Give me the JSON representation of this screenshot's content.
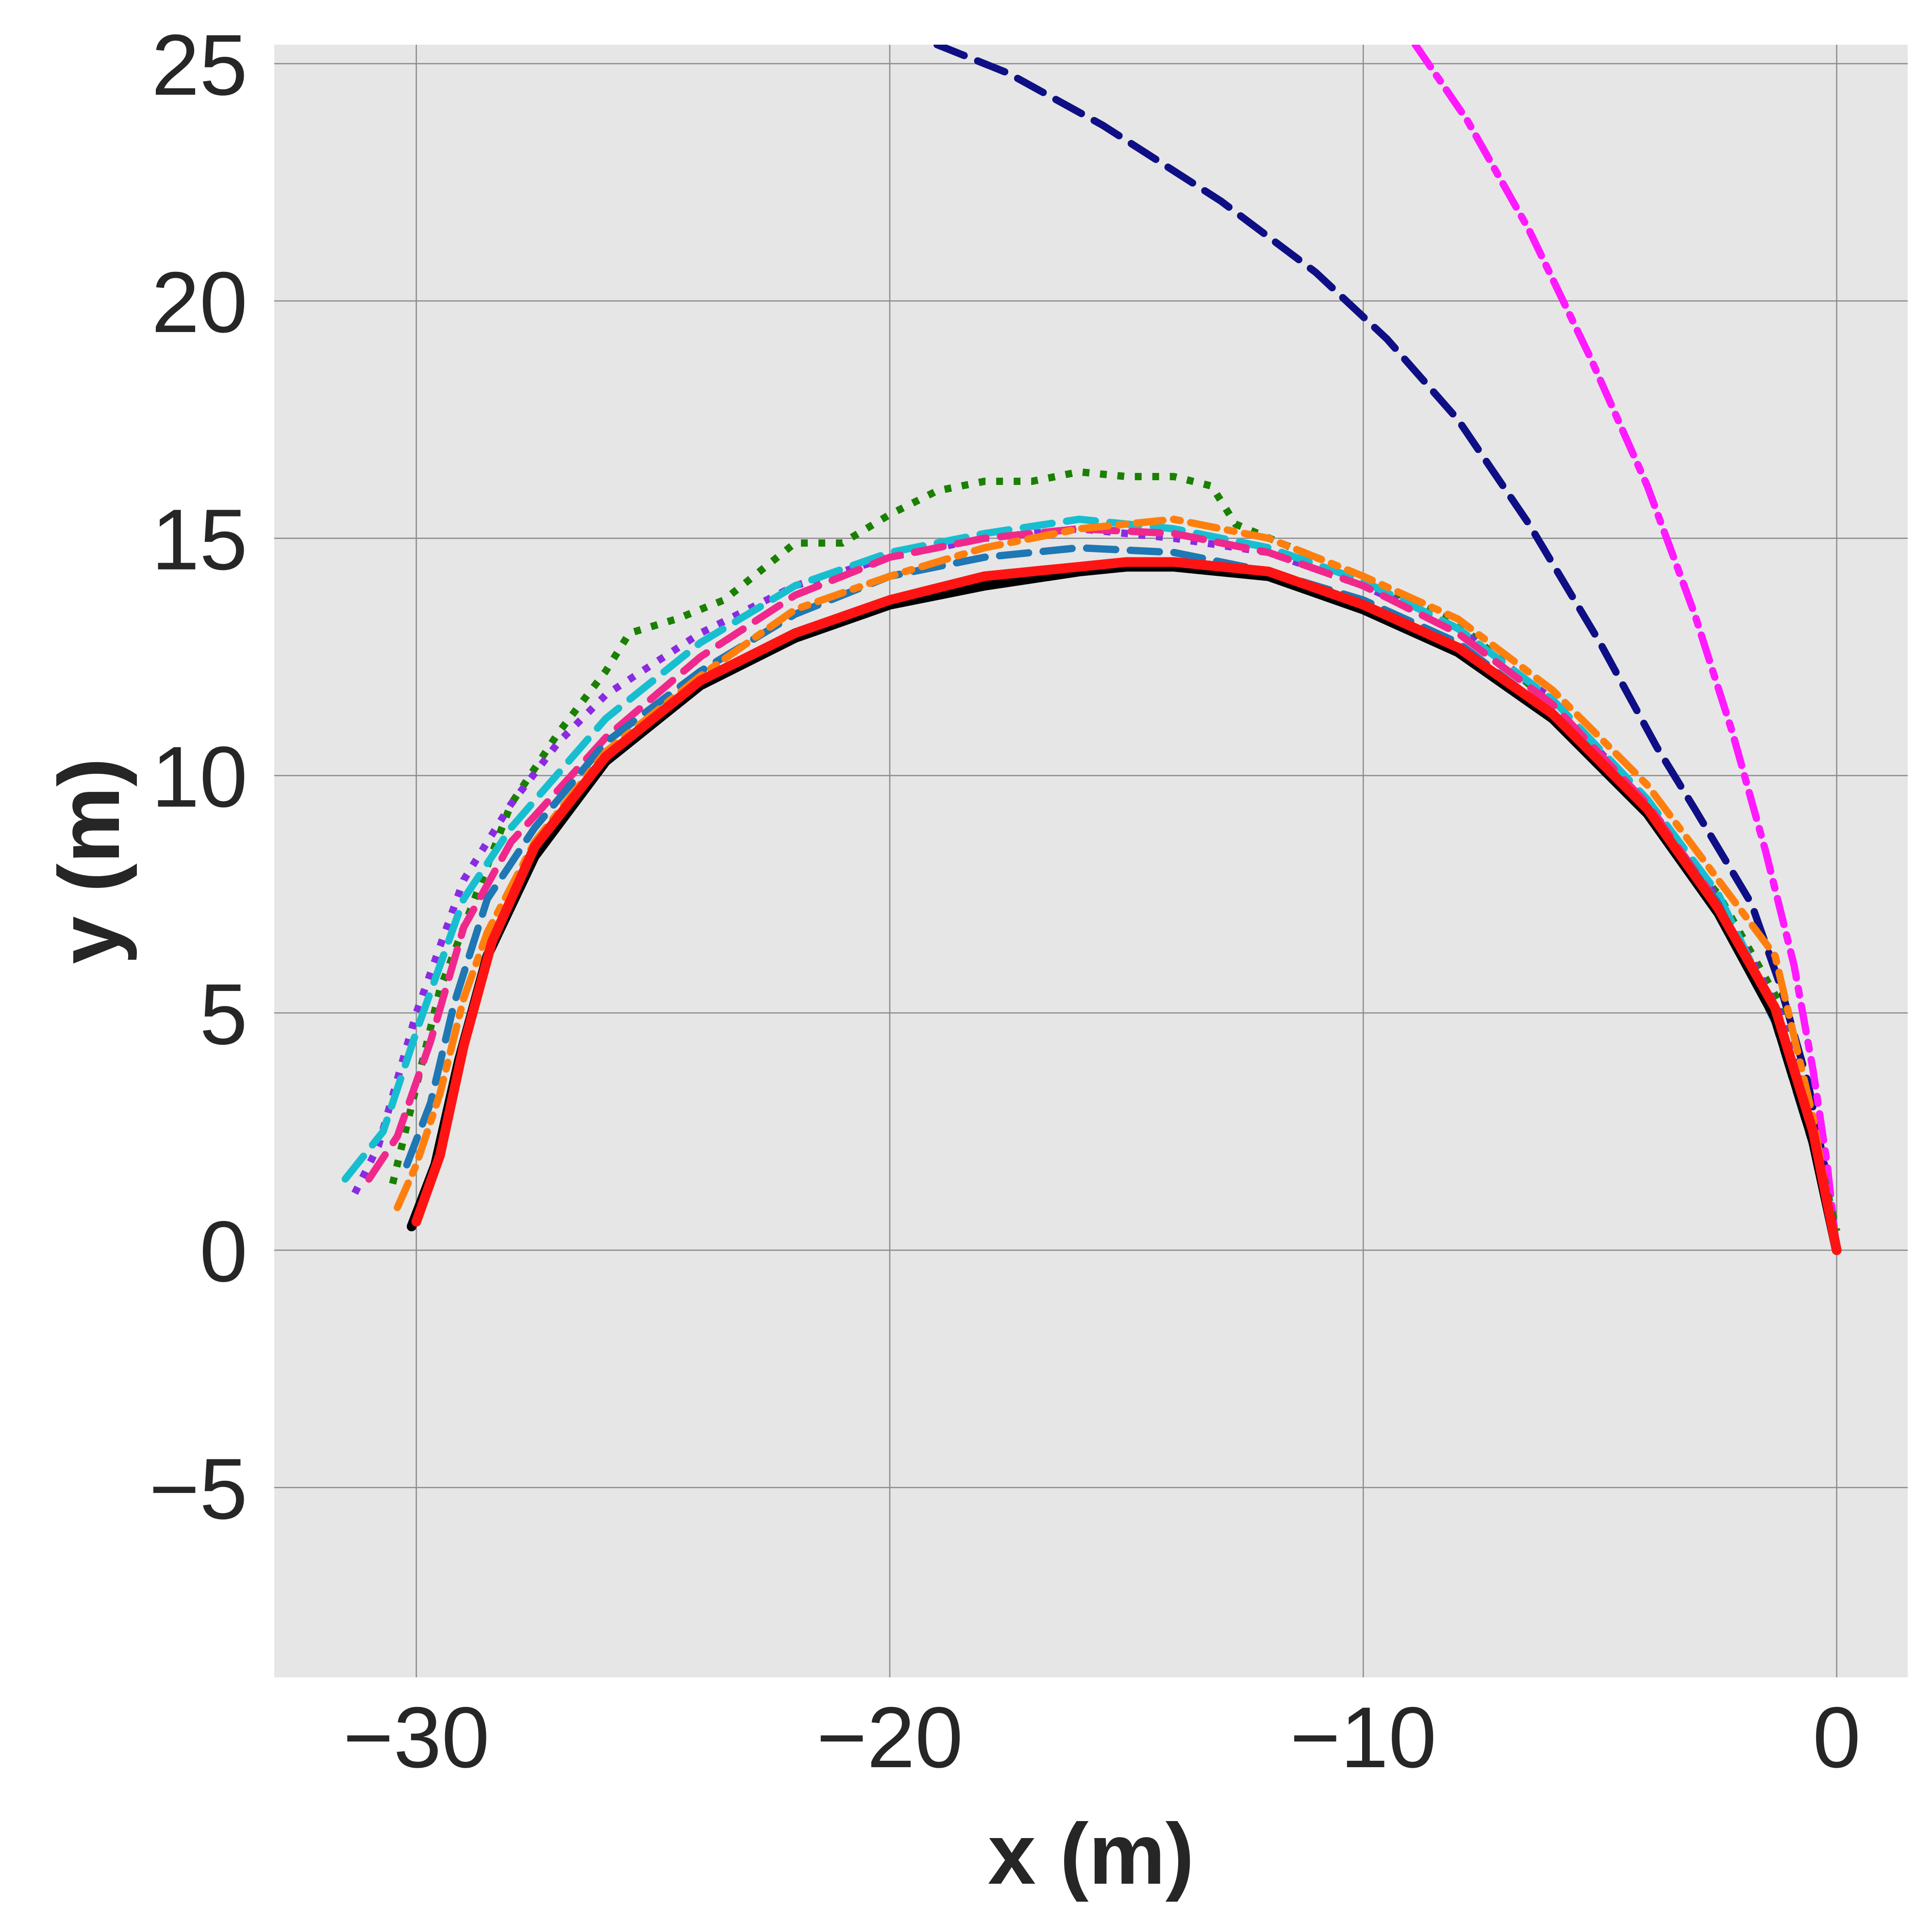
{
  "chart_data": {
    "type": "line",
    "title": "",
    "xlabel": "x (m)",
    "ylabel": "y (m)",
    "xlim": [
      -33,
      1.5
    ],
    "ylim": [
      -9,
      25.4
    ],
    "xticks": [
      -30,
      -20,
      -10,
      0
    ],
    "xtick_labels": [
      "−30",
      "−20",
      "−10",
      "0"
    ],
    "yticks": [
      -5,
      0,
      5,
      10,
      15,
      20,
      25
    ],
    "ytick_labels": [
      "−5",
      "0",
      "5",
      "10",
      "15",
      "20",
      "25"
    ],
    "grid": true,
    "legend": false,
    "background": "#e6e6e6",
    "grid_color": "#8c8c8c",
    "series": [
      {
        "color": "#0f0f85",
        "style": "dashed",
        "x": [
          -19,
          -17.5,
          -15.5,
          -13,
          -11,
          -9.5,
          -8,
          -6.5,
          -5,
          -3.8,
          -3,
          -2.4,
          -1.8,
          -1.2,
          -0.6,
          -0.2,
          0
        ],
        "y": [
          25.4,
          24.8,
          23.7,
          22.1,
          20.6,
          19.2,
          17.5,
          15.3,
          12.8,
          10.6,
          9.3,
          8.3,
          7.3,
          5.6,
          3.5,
          1.5,
          0
        ]
      },
      {
        "color": "#ff1aff",
        "style": "dashdot",
        "x": [
          -8.9,
          -7.8,
          -6.5,
          -5.2,
          -4,
          -3,
          -2.2,
          -1.5,
          -0.9,
          -0.5,
          -0.2,
          0
        ],
        "y": [
          25.4,
          23.8,
          21.5,
          18.8,
          16.1,
          13.4,
          10.9,
          8.4,
          6,
          3.8,
          1.8,
          0
        ]
      },
      {
        "color": "#1a8000",
        "style": "dotted",
        "x": [
          -30.5,
          -29.5,
          -28,
          -27,
          -26,
          -25.5,
          -24.5,
          -23.5,
          -22,
          -21,
          -20,
          -19,
          -18,
          -17,
          -16,
          -15,
          -14,
          -13.2,
          -12.7,
          -11.5,
          -10,
          -8,
          -6,
          -4,
          -2.5,
          -1.2,
          -0.5,
          0
        ],
        "y": [
          1.4,
          5.5,
          9.4,
          10.9,
          12.2,
          13,
          13.3,
          13.7,
          14.9,
          14.9,
          15.5,
          16,
          16.2,
          16.2,
          16.4,
          16.3,
          16.3,
          16.1,
          15.3,
          14.8,
          14.2,
          13.2,
          11.5,
          9.2,
          7.5,
          5.2,
          2.5,
          0.4
        ]
      },
      {
        "color": "#8a2be2",
        "style": "dotted",
        "x": [
          -31.3,
          -30.8,
          -30,
          -29,
          -28,
          -27,
          -26,
          -24,
          -22,
          -20,
          -18,
          -16,
          -14,
          -12,
          -10,
          -8,
          -6,
          -4,
          -2.5,
          -1.2,
          -0.5,
          0
        ],
        "y": [
          1.2,
          2.2,
          5,
          7.8,
          9.4,
          10.7,
          11.7,
          13,
          14,
          14.6,
          15,
          15.2,
          15,
          14.7,
          14,
          13.1,
          11.6,
          9.4,
          7.4,
          5,
          2.5,
          0
        ]
      },
      {
        "color": "#17becf",
        "style": "dashed",
        "x": [
          -31.5,
          -30.7,
          -30,
          -29,
          -28,
          -26,
          -24,
          -22,
          -20,
          -18,
          -16,
          -14,
          -12,
          -10,
          -8,
          -6,
          -4,
          -2.5,
          -1.3,
          -0.5,
          0
        ],
        "y": [
          1.5,
          2.5,
          4.6,
          7.4,
          8.9,
          11.2,
          12.8,
          14,
          14.7,
          15.1,
          15.4,
          15.2,
          14.8,
          14.1,
          13.1,
          11.6,
          9.5,
          7.5,
          5,
          2.3,
          0
        ]
      },
      {
        "color": "#f0288c",
        "style": "dashed",
        "x": [
          -31,
          -30.4,
          -29.7,
          -29,
          -28,
          -26,
          -24,
          -22,
          -20,
          -18,
          -16,
          -14,
          -12,
          -10,
          -8,
          -6,
          -4,
          -2.5,
          -1.3,
          -0.5,
          0
        ],
        "y": [
          1.5,
          2.4,
          4.4,
          6.8,
          8.6,
          10.8,
          12.5,
          13.8,
          14.6,
          15,
          15.2,
          15.1,
          14.7,
          14,
          13,
          11.5,
          9.4,
          7.3,
          4.9,
          2.3,
          0
        ]
      },
      {
        "color": "#1f77b4",
        "style": "dashed",
        "x": [
          -30.2,
          -29.7,
          -29.2,
          -28.5,
          -27.5,
          -26,
          -24,
          -22,
          -20,
          -18,
          -16,
          -14,
          -12,
          -10,
          -8,
          -6,
          -4,
          -2.5,
          -1.3,
          -0.5,
          0
        ],
        "y": [
          1.8,
          3.1,
          5.2,
          7.4,
          8.9,
          10.7,
          12.2,
          13.4,
          14.2,
          14.6,
          14.8,
          14.7,
          14.3,
          13.7,
          12.8,
          11.3,
          9.3,
          7.3,
          4.8,
          2.2,
          0
        ]
      },
      {
        "color": "#ff7f0e",
        "style": "dashdot",
        "x": [
          -30.4,
          -30,
          -29.5,
          -29,
          -28.5,
          -27.5,
          -26,
          -24,
          -22,
          -20,
          -18,
          -16,
          -14,
          -12,
          -10,
          -8,
          -6,
          -4,
          -2.5,
          -1.3,
          -0.5,
          0
        ],
        "y": [
          0.9,
          1.8,
          3.3,
          5.3,
          6.7,
          8.6,
          10.5,
          12.1,
          13.5,
          14.2,
          14.8,
          15.2,
          15.4,
          15,
          14.2,
          13.3,
          11.8,
          9.8,
          7.8,
          6.2,
          2.8,
          0
        ]
      },
      {
        "color": "#000000",
        "style": "solid",
        "x": [
          -30.1,
          -29.6,
          -29.1,
          -28.5,
          -27.5,
          -26,
          -24,
          -22,
          -20,
          -18,
          -16,
          -15,
          -14,
          -12,
          -10,
          -8,
          -6,
          -4,
          -2.5,
          -1.3,
          -0.5,
          0
        ],
        "y": [
          0.5,
          1.8,
          4,
          6.2,
          8.3,
          10.3,
          11.9,
          12.9,
          13.6,
          14,
          14.3,
          14.4,
          14.4,
          14.2,
          13.5,
          12.6,
          11.2,
          9.2,
          7.1,
          4.9,
          2.3,
          0
        ]
      },
      {
        "color": "#ff1414",
        "style": "solid",
        "x": [
          -30,
          -29.5,
          -29,
          -28.4,
          -27.5,
          -26,
          -24,
          -22,
          -20,
          -18,
          -16,
          -15,
          -14,
          -12,
          -10,
          -8,
          -6,
          -4,
          -2.5,
          -1.3,
          -0.5,
          0
        ],
        "y": [
          0.6,
          2,
          4.3,
          6.5,
          8.5,
          10.4,
          12,
          13,
          13.7,
          14.2,
          14.4,
          14.5,
          14.5,
          14.3,
          13.6,
          12.7,
          11.3,
          9.3,
          7.2,
          5.1,
          2.5,
          0
        ]
      }
    ]
  }
}
